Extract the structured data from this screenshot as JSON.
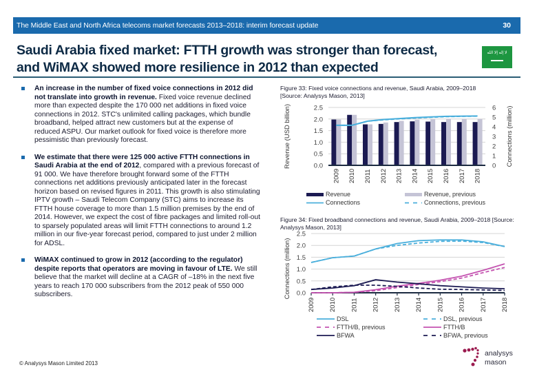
{
  "header": {
    "report_title": "The Middle East and North Africa telecoms market forecasts 2013–2018: interim forecast update",
    "page_number": "30",
    "bar_color": "#1a6aad"
  },
  "slide": {
    "title_line1": "Saudi Arabia fixed market: FTTH growth was stronger than forecast,",
    "title_line2": "and WiMAX showed more resilience in 2012 than expected",
    "flag_icon": "saudi-flag-icon",
    "flag_script": "لا إله إلا الله"
  },
  "bullets": [
    {
      "bold": "An increase in the number of fixed voice connections in 2012 did not translate into growth in revenue.",
      "text": " Fixed voice revenue declined more than expected despite the 170 000 net additions in fixed voice connections in 2012. STC's unlimited calling packages, which bundle broadband, helped attract new customers but at the expense of reduced ASPU. Our market outlook for fixed voice is therefore more pessimistic than previously forecast."
    },
    {
      "bold": "We estimate that there were 125 000 active FTTH connections in Saudi Arabia at the end of 2012",
      "text": ", compared with a previous forecast of 91 000. We have therefore brought forward some of the FTTH connections net additions previously anticipated later in the forecast horizon based on revised figures in 2011. This growth is also stimulating IPTV growth – Saudi Telecom Company (STC) aims to increase its FTTH house coverage to more than 1.5 million premises by the end of 2014. However, we expect the cost of fibre packages and limited roll-out to sparsely populated areas will limit FTTH connections to around 1.2 million in our five-year forecast period, compared to just under 2 million for ADSL."
    },
    {
      "bold": "WiMAX continued to grow in 2012 (according to the regulator) despite reports that operators are moving in favour of LTE.",
      "text": " We still believe that the market will decline at a CAGR of –18% in the next five years to reach 170 000 subscribers from the 2012 peak of 550 000 subscribers."
    }
  ],
  "footer": {
    "copyright": "© Analysys Mason Limited 2013"
  },
  "logo": {
    "line1": "analysys",
    "line2": "mason",
    "dot_color": "#9b1b4f"
  },
  "chart_data": [
    {
      "type": "bar",
      "title": "Figure 33: Fixed voice connections and revenue, Saudi Arabia, 2009–2018",
      "source": "[Source: Analysys Mason, 2013]",
      "categories": [
        "2009",
        "2010",
        "2011",
        "2012",
        "2013",
        "2014",
        "2015",
        "2016",
        "2017",
        "2018"
      ],
      "ylabel": "Revenue (USD billion)",
      "y2label": "Connections (million)",
      "ylim": [
        0,
        2.5
      ],
      "y2lim": [
        0,
        6
      ],
      "yticks": [
        "0.0",
        "0.5",
        "1.0",
        "1.5",
        "2.0",
        "2.5"
      ],
      "y2ticks": [
        "0",
        "1",
        "2",
        "3",
        "4",
        "5",
        "6"
      ],
      "grid": true,
      "legend_position": "bottom",
      "series": [
        {
          "name": "Revenue",
          "kind": "bar",
          "axis": "left",
          "color": "#1b1a52",
          "values": [
            1.98,
            2.18,
            1.77,
            1.79,
            1.87,
            1.9,
            1.89,
            1.87,
            1.87,
            1.87
          ]
        },
        {
          "name": "Revenue, previous",
          "kind": "bar",
          "axis": "left",
          "color": "#c5c4d6",
          "values": [
            1.98,
            2.18,
            1.77,
            1.85,
            1.92,
            1.97,
            1.99,
            2.0,
            2.0,
            2.0
          ]
        },
        {
          "name": "Connections",
          "kind": "line",
          "axis": "right",
          "color": "#4aafdc",
          "dash": false,
          "values": [
            4.15,
            4.15,
            4.58,
            4.75,
            4.85,
            4.95,
            5.02,
            5.08,
            5.1,
            5.12
          ]
        },
        {
          "name": "Connections, previous",
          "kind": "line",
          "axis": "right",
          "color": "#4aafdc",
          "dash": true,
          "values": [
            4.15,
            4.15,
            4.58,
            4.72,
            4.82,
            4.9,
            4.98,
            5.05,
            5.08,
            5.1
          ]
        }
      ]
    },
    {
      "type": "line",
      "title": "Figure 34: Fixed broadband connections and revenue, Saudi Arabia, 2009–2018",
      "source": "[Source: Analysys Mason, 2013]",
      "categories": [
        "2009",
        "2010",
        "2011",
        "2012",
        "2013",
        "2014",
        "2015",
        "2016",
        "2017",
        "2018"
      ],
      "ylabel": "Connections (million)",
      "ylim": [
        0,
        2.5
      ],
      "yticks": [
        "0.0",
        "0.5",
        "1.0",
        "1.5",
        "2.0",
        "2.5"
      ],
      "grid": true,
      "legend_position": "bottom",
      "series": [
        {
          "name": "DSL",
          "color": "#4aafdc",
          "dash": false,
          "values": [
            1.28,
            1.48,
            1.55,
            1.85,
            2.08,
            2.2,
            2.23,
            2.23,
            2.15,
            1.95
          ]
        },
        {
          "name": "DSL, previous",
          "color": "#4aafdc",
          "dash": true,
          "values": [
            1.28,
            1.48,
            1.55,
            1.85,
            2.0,
            2.1,
            2.17,
            2.18,
            2.12,
            1.95
          ]
        },
        {
          "name": "FTTH/B, previous",
          "color": "#c453b0",
          "dash": true,
          "values": [
            0.0,
            0.0,
            0.02,
            0.09,
            0.22,
            0.35,
            0.47,
            0.62,
            0.85,
            1.07
          ]
        },
        {
          "name": "FTTH/B",
          "color": "#c453b0",
          "dash": false,
          "values": [
            0.0,
            0.0,
            0.02,
            0.13,
            0.28,
            0.4,
            0.53,
            0.7,
            0.95,
            1.22
          ]
        },
        {
          "name": "BFWA",
          "color": "#1b1a52",
          "dash": false,
          "values": [
            0.14,
            0.2,
            0.3,
            0.55,
            0.45,
            0.38,
            0.3,
            0.25,
            0.2,
            0.17
          ]
        },
        {
          "name": "BFWA, previous",
          "color": "#1b1a52",
          "dash": true,
          "values": [
            0.14,
            0.25,
            0.32,
            0.32,
            0.27,
            0.2,
            0.15,
            0.14,
            0.12,
            0.1
          ]
        }
      ]
    }
  ]
}
